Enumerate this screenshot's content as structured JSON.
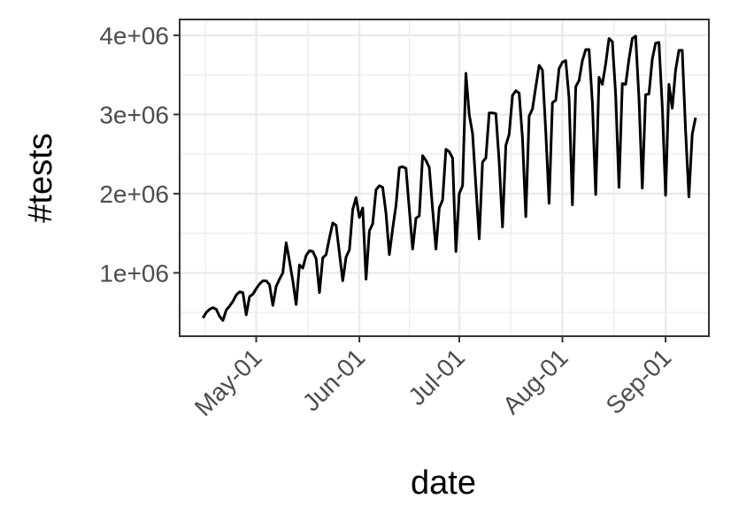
{
  "chart_data": {
    "type": "line",
    "xlabel": "date",
    "ylabel": "#tests",
    "x_tick_labels": [
      "May-01",
      "Jun-01",
      "Jul-01",
      "Aug-01",
      "Sep-01"
    ],
    "x_tick_dates": [
      "2020-05-01",
      "2020-06-01",
      "2020-07-01",
      "2020-08-01",
      "2020-09-01"
    ],
    "y_tick_labels": [
      "1e+06",
      "2e+06",
      "3e+06",
      "4e+06"
    ],
    "y_tick_values": [
      1000000,
      2000000,
      3000000,
      4000000
    ],
    "xlim": [
      "2020-04-08",
      "2020-09-14"
    ],
    "ylim": [
      200000,
      4200000
    ],
    "grid": true,
    "colors": {
      "line": "#000000",
      "grid": "#ebebeb",
      "panel_border": "#333333"
    },
    "series": [
      {
        "values": [
          [
            "2020-04-15",
            430000
          ],
          [
            "2020-04-16",
            500000
          ],
          [
            "2020-04-17",
            540000
          ],
          [
            "2020-04-18",
            560000
          ],
          [
            "2020-04-19",
            540000
          ],
          [
            "2020-04-20",
            450000
          ],
          [
            "2020-04-21",
            400000
          ],
          [
            "2020-04-22",
            530000
          ],
          [
            "2020-04-23",
            580000
          ],
          [
            "2020-04-24",
            640000
          ],
          [
            "2020-04-25",
            720000
          ],
          [
            "2020-04-26",
            760000
          ],
          [
            "2020-04-27",
            750000
          ],
          [
            "2020-04-28",
            470000
          ],
          [
            "2020-04-29",
            700000
          ],
          [
            "2020-04-30",
            730000
          ],
          [
            "2020-05-01",
            800000
          ],
          [
            "2020-05-02",
            860000
          ],
          [
            "2020-05-03",
            900000
          ],
          [
            "2020-05-04",
            900000
          ],
          [
            "2020-05-05",
            850000
          ],
          [
            "2020-05-06",
            590000
          ],
          [
            "2020-05-07",
            830000
          ],
          [
            "2020-05-08",
            920000
          ],
          [
            "2020-05-09",
            1000000
          ],
          [
            "2020-05-10",
            1380000
          ],
          [
            "2020-05-11",
            1150000
          ],
          [
            "2020-05-12",
            900000
          ],
          [
            "2020-05-13",
            600000
          ],
          [
            "2020-05-14",
            1100000
          ],
          [
            "2020-05-15",
            1060000
          ],
          [
            "2020-05-16",
            1220000
          ],
          [
            "2020-05-17",
            1280000
          ],
          [
            "2020-05-18",
            1270000
          ],
          [
            "2020-05-19",
            1180000
          ],
          [
            "2020-05-20",
            750000
          ],
          [
            "2020-05-21",
            1190000
          ],
          [
            "2020-05-22",
            1230000
          ],
          [
            "2020-05-23",
            1440000
          ],
          [
            "2020-05-24",
            1630000
          ],
          [
            "2020-05-25",
            1600000
          ],
          [
            "2020-05-26",
            1250000
          ],
          [
            "2020-05-27",
            900000
          ],
          [
            "2020-05-28",
            1200000
          ],
          [
            "2020-05-29",
            1290000
          ],
          [
            "2020-05-30",
            1800000
          ],
          [
            "2020-05-31",
            1950000
          ],
          [
            "2020-06-01",
            1700000
          ],
          [
            "2020-06-02",
            1820000
          ],
          [
            "2020-06-03",
            920000
          ],
          [
            "2020-06-04",
            1530000
          ],
          [
            "2020-06-05",
            1620000
          ],
          [
            "2020-06-06",
            2050000
          ],
          [
            "2020-06-07",
            2100000
          ],
          [
            "2020-06-08",
            2080000
          ],
          [
            "2020-06-09",
            1750000
          ],
          [
            "2020-06-10",
            1230000
          ],
          [
            "2020-06-11",
            1560000
          ],
          [
            "2020-06-12",
            1850000
          ],
          [
            "2020-06-13",
            2330000
          ],
          [
            "2020-06-14",
            2340000
          ],
          [
            "2020-06-15",
            2320000
          ],
          [
            "2020-06-16",
            1800000
          ],
          [
            "2020-06-17",
            1300000
          ],
          [
            "2020-06-18",
            1690000
          ],
          [
            "2020-06-19",
            1720000
          ],
          [
            "2020-06-20",
            2480000
          ],
          [
            "2020-06-21",
            2420000
          ],
          [
            "2020-06-22",
            2330000
          ],
          [
            "2020-06-23",
            1800000
          ],
          [
            "2020-06-24",
            1300000
          ],
          [
            "2020-06-25",
            1820000
          ],
          [
            "2020-06-26",
            1920000
          ],
          [
            "2020-06-27",
            2560000
          ],
          [
            "2020-06-28",
            2530000
          ],
          [
            "2020-06-29",
            2450000
          ],
          [
            "2020-06-30",
            1270000
          ],
          [
            "2020-07-01",
            2000000
          ],
          [
            "2020-07-02",
            2100000
          ],
          [
            "2020-07-03",
            3520000
          ],
          [
            "2020-07-04",
            3000000
          ],
          [
            "2020-07-05",
            2760000
          ],
          [
            "2020-07-06",
            2100000
          ],
          [
            "2020-07-07",
            1430000
          ],
          [
            "2020-07-08",
            2400000
          ],
          [
            "2020-07-09",
            2450000
          ],
          [
            "2020-07-10",
            3020000
          ],
          [
            "2020-07-11",
            3020000
          ],
          [
            "2020-07-12",
            3010000
          ],
          [
            "2020-07-13",
            2400000
          ],
          [
            "2020-07-14",
            1580000
          ],
          [
            "2020-07-15",
            2610000
          ],
          [
            "2020-07-16",
            2750000
          ],
          [
            "2020-07-17",
            3240000
          ],
          [
            "2020-07-18",
            3300000
          ],
          [
            "2020-07-19",
            3270000
          ],
          [
            "2020-07-20",
            2700000
          ],
          [
            "2020-07-21",
            1710000
          ],
          [
            "2020-07-22",
            2980000
          ],
          [
            "2020-07-23",
            3070000
          ],
          [
            "2020-07-24",
            3350000
          ],
          [
            "2020-07-25",
            3620000
          ],
          [
            "2020-07-26",
            3560000
          ],
          [
            "2020-07-27",
            2780000
          ],
          [
            "2020-07-28",
            1880000
          ],
          [
            "2020-07-29",
            3150000
          ],
          [
            "2020-07-30",
            3180000
          ],
          [
            "2020-07-31",
            3580000
          ],
          [
            "2020-08-01",
            3660000
          ],
          [
            "2020-08-02",
            3680000
          ],
          [
            "2020-08-03",
            3200000
          ],
          [
            "2020-08-04",
            1860000
          ],
          [
            "2020-08-05",
            3350000
          ],
          [
            "2020-08-06",
            3430000
          ],
          [
            "2020-08-07",
            3680000
          ],
          [
            "2020-08-08",
            3820000
          ],
          [
            "2020-08-09",
            3820000
          ],
          [
            "2020-08-10",
            3150000
          ],
          [
            "2020-08-11",
            1990000
          ],
          [
            "2020-08-12",
            3470000
          ],
          [
            "2020-08-13",
            3380000
          ],
          [
            "2020-08-14",
            3640000
          ],
          [
            "2020-08-15",
            3960000
          ],
          [
            "2020-08-16",
            3920000
          ],
          [
            "2020-08-17",
            3250000
          ],
          [
            "2020-08-18",
            2080000
          ],
          [
            "2020-08-19",
            3390000
          ],
          [
            "2020-08-20",
            3380000
          ],
          [
            "2020-08-21",
            3700000
          ],
          [
            "2020-08-22",
            3960000
          ],
          [
            "2020-08-23",
            3990000
          ],
          [
            "2020-08-24",
            3200000
          ],
          [
            "2020-08-25",
            2070000
          ],
          [
            "2020-08-26",
            3250000
          ],
          [
            "2020-08-27",
            3260000
          ],
          [
            "2020-08-28",
            3700000
          ],
          [
            "2020-08-29",
            3900000
          ],
          [
            "2020-08-30",
            3910000
          ],
          [
            "2020-08-31",
            3100000
          ],
          [
            "2020-09-01",
            1980000
          ],
          [
            "2020-09-02",
            3380000
          ],
          [
            "2020-09-03",
            3080000
          ],
          [
            "2020-09-04",
            3560000
          ],
          [
            "2020-09-05",
            3810000
          ],
          [
            "2020-09-06",
            3810000
          ],
          [
            "2020-09-07",
            2800000
          ],
          [
            "2020-09-08",
            1960000
          ],
          [
            "2020-09-09",
            2750000
          ],
          [
            "2020-09-10",
            2960000
          ]
        ]
      }
    ]
  }
}
